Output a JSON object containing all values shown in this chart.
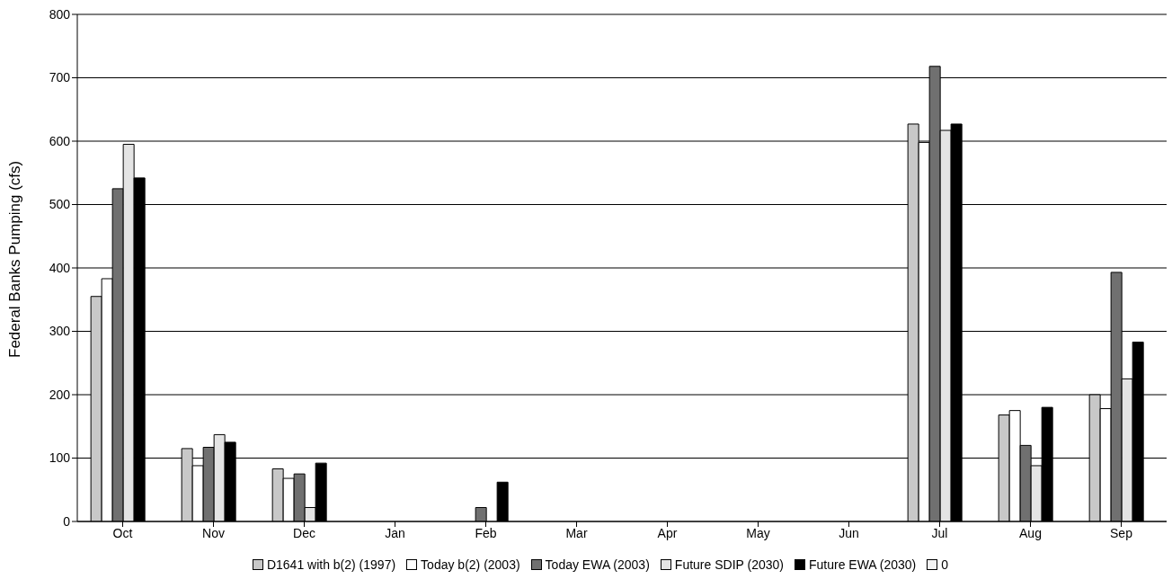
{
  "chart_data": {
    "type": "bar",
    "ylabel": "Federal Banks Pumping (cfs)",
    "categories": [
      "Oct",
      "Nov",
      "Dec",
      "Jan",
      "Feb",
      "Mar",
      "Apr",
      "May",
      "Jun",
      "Jul",
      "Aug",
      "Sep"
    ],
    "series": [
      {
        "name": "D1641 with b(2) (1997)",
        "color": "#c8c8c8",
        "values": [
          355,
          115,
          83,
          0,
          0,
          0,
          0,
          0,
          0,
          627,
          168,
          200
        ]
      },
      {
        "name": "Today b(2) (2003)",
        "color": "#ffffff",
        "values": [
          383,
          88,
          68,
          0,
          0,
          0,
          0,
          0,
          0,
          598,
          175,
          178
        ]
      },
      {
        "name": "Today EWA (2003)",
        "color": "#707070",
        "values": [
          525,
          117,
          75,
          0,
          22,
          0,
          0,
          0,
          0,
          718,
          120,
          393
        ]
      },
      {
        "name": "Future SDIP (2030)",
        "color": "#e4e4e4",
        "values": [
          595,
          137,
          22,
          0,
          0,
          0,
          0,
          0,
          0,
          617,
          88,
          225
        ]
      },
      {
        "name": "Future EWA (2030)",
        "color": "#000000",
        "values": [
          542,
          125,
          92,
          0,
          62,
          0,
          0,
          0,
          0,
          627,
          180,
          283
        ]
      },
      {
        "name": "0",
        "color": "#f4f4f4",
        "values": [
          0,
          0,
          0,
          0,
          0,
          0,
          0,
          0,
          0,
          0,
          0,
          0
        ]
      }
    ],
    "ylim": [
      0,
      800
    ],
    "yticks": [
      0,
      100,
      200,
      300,
      400,
      500,
      600,
      700,
      800
    ],
    "grid": "y",
    "legend": "bottom"
  }
}
